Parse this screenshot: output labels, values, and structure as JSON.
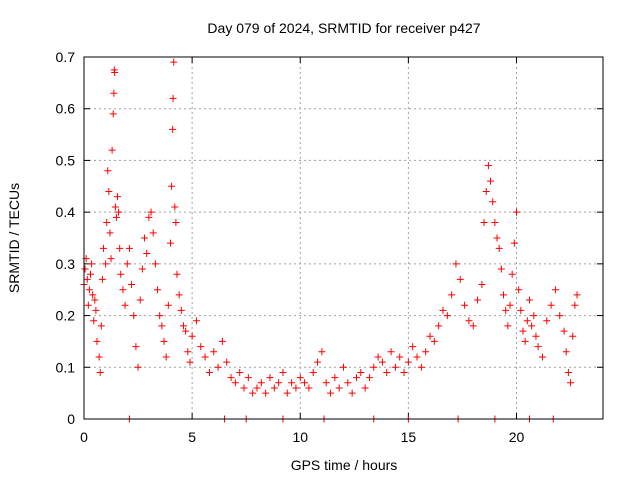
{
  "chart_data": {
    "type": "scatter",
    "title": "Day 079 of 2024, SRMTID for receiver p427",
    "xlabel": "GPS time / hours",
    "ylabel": "SRMTID / TECUs",
    "xlim": [
      0,
      24
    ],
    "ylim": [
      0,
      0.7
    ],
    "xticks": [
      0,
      5,
      10,
      15,
      20
    ],
    "xtick_labels": [
      "0",
      "5",
      "10",
      "15",
      "20"
    ],
    "yticks": [
      0,
      0.1,
      0.2,
      0.3,
      0.4,
      0.5,
      0.6,
      0.7
    ],
    "ytick_labels": [
      "0",
      "0.1",
      "0.2",
      "0.3",
      "0.4",
      "0.5",
      "0.6",
      "0.7"
    ],
    "grid": true,
    "marker": "+",
    "marker_color": "#ff0000",
    "series": [
      {
        "name": "SRMTID",
        "x": [
          0.0,
          0.05,
          0.1,
          0.15,
          0.2,
          0.25,
          0.3,
          0.35,
          0.4,
          0.45,
          0.5,
          0.55,
          0.6,
          0.7,
          0.75,
          0.8,
          0.85,
          0.9,
          1.0,
          1.05,
          1.1,
          1.15,
          1.2,
          1.25,
          1.3,
          1.35,
          1.38,
          1.4,
          1.42,
          1.45,
          1.5,
          1.55,
          1.6,
          1.65,
          1.7,
          1.8,
          1.9,
          2.0,
          2.1,
          2.2,
          2.3,
          2.4,
          2.5,
          2.6,
          2.7,
          2.8,
          2.9,
          3.0,
          3.1,
          3.2,
          3.3,
          3.4,
          3.5,
          3.6,
          3.7,
          3.8,
          3.9,
          4.0,
          4.05,
          4.1,
          4.12,
          4.15,
          4.2,
          4.25,
          4.3,
          4.4,
          4.5,
          4.6,
          4.7,
          4.8,
          4.9,
          5.0,
          5.2,
          5.4,
          5.6,
          5.8,
          6.0,
          6.2,
          6.4,
          6.6,
          6.8,
          7.0,
          7.2,
          7.4,
          7.6,
          7.8,
          8.0,
          8.2,
          8.4,
          8.6,
          8.8,
          9.0,
          9.2,
          9.4,
          9.6,
          9.8,
          10.0,
          10.2,
          10.4,
          10.6,
          10.8,
          11.0,
          11.2,
          11.4,
          11.6,
          11.8,
          12.0,
          12.2,
          12.4,
          12.6,
          12.8,
          13.0,
          13.2,
          13.4,
          13.6,
          13.8,
          14.0,
          14.2,
          14.4,
          14.6,
          14.8,
          15.0,
          15.2,
          15.4,
          15.6,
          15.8,
          16.0,
          16.2,
          16.4,
          16.6,
          16.8,
          17.0,
          17.2,
          17.4,
          17.6,
          17.8,
          18.0,
          18.2,
          18.4,
          18.5,
          18.6,
          18.7,
          18.8,
          18.9,
          19.0,
          19.1,
          19.2,
          19.3,
          19.4,
          19.5,
          19.6,
          19.7,
          19.8,
          19.9,
          20.0,
          20.1,
          20.2,
          20.3,
          20.4,
          20.5,
          20.6,
          20.7,
          20.8,
          20.9,
          21.0,
          21.2,
          21.4,
          21.6,
          21.8,
          22.0,
          22.2,
          22.3,
          22.4,
          22.5,
          22.6,
          22.7,
          22.8,
          2.1,
          6.5,
          7.5,
          9.2,
          11.1,
          13.4,
          15.0,
          17.3,
          19.0,
          20.6,
          21.7
        ],
        "y": [
          0.26,
          0.29,
          0.31,
          0.27,
          0.22,
          0.25,
          0.28,
          0.3,
          0.24,
          0.19,
          0.23,
          0.21,
          0.15,
          0.12,
          0.09,
          0.18,
          0.27,
          0.33,
          0.3,
          0.38,
          0.48,
          0.44,
          0.36,
          0.31,
          0.52,
          0.59,
          0.63,
          0.675,
          0.67,
          0.41,
          0.39,
          0.43,
          0.4,
          0.33,
          0.28,
          0.25,
          0.22,
          0.3,
          0.33,
          0.26,
          0.2,
          0.14,
          0.1,
          0.23,
          0.29,
          0.35,
          0.32,
          0.39,
          0.4,
          0.36,
          0.3,
          0.25,
          0.2,
          0.18,
          0.15,
          0.12,
          0.22,
          0.34,
          0.45,
          0.56,
          0.62,
          0.69,
          0.41,
          0.38,
          0.28,
          0.24,
          0.21,
          0.18,
          0.17,
          0.13,
          0.11,
          0.16,
          0.19,
          0.14,
          0.12,
          0.09,
          0.13,
          0.1,
          0.15,
          0.11,
          0.08,
          0.07,
          0.09,
          0.06,
          0.08,
          0.05,
          0.06,
          0.07,
          0.05,
          0.08,
          0.06,
          0.07,
          0.09,
          0.05,
          0.07,
          0.06,
          0.08,
          0.07,
          0.06,
          0.09,
          0.11,
          0.13,
          0.07,
          0.05,
          0.08,
          0.06,
          0.1,
          0.07,
          0.05,
          0.08,
          0.09,
          0.06,
          0.08,
          0.1,
          0.12,
          0.11,
          0.09,
          0.13,
          0.1,
          0.12,
          0.09,
          0.11,
          0.14,
          0.12,
          0.1,
          0.13,
          0.16,
          0.15,
          0.18,
          0.21,
          0.2,
          0.24,
          0.3,
          0.27,
          0.22,
          0.19,
          0.18,
          0.23,
          0.26,
          0.38,
          0.44,
          0.49,
          0.46,
          0.42,
          0.38,
          0.35,
          0.33,
          0.29,
          0.24,
          0.21,
          0.18,
          0.22,
          0.28,
          0.34,
          0.4,
          0.25,
          0.21,
          0.17,
          0.15,
          0.19,
          0.23,
          0.18,
          0.2,
          0.16,
          0.14,
          0.12,
          0.19,
          0.22,
          0.25,
          0.2,
          0.17,
          0.13,
          0.09,
          0.07,
          0.16,
          0.22,
          0.24,
          0.0,
          0.0,
          0.0,
          0.0,
          0.0,
          0.0,
          0.0,
          0.0,
          0.0,
          0.0,
          0.0
        ]
      }
    ]
  }
}
